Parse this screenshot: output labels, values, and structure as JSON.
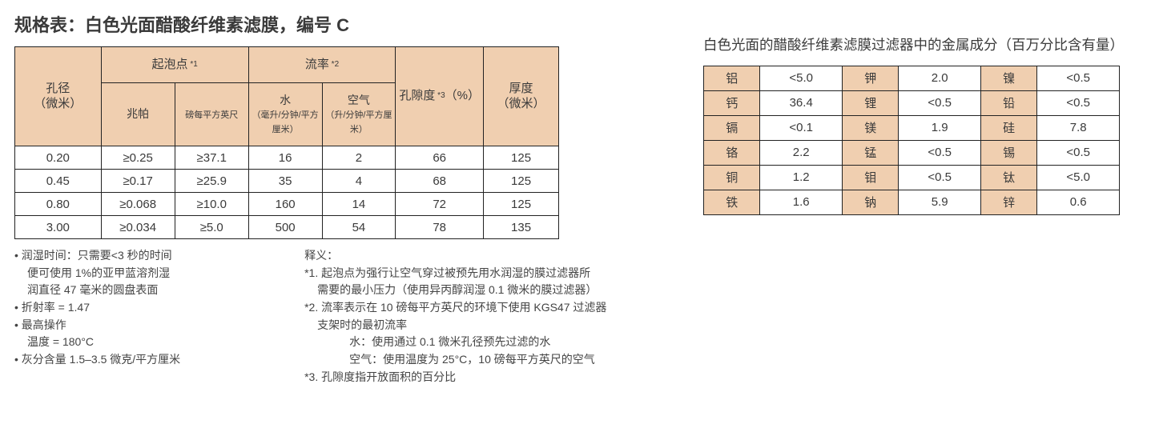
{
  "colors": {
    "header_fill": "#f0cfb0",
    "border": "#222222",
    "text": "#3a3a3a",
    "bg": "#ffffff"
  },
  "title": "规格表：白色光面醋酸纤维素滤膜，编号 C",
  "spec_table": {
    "headers": {
      "pore": "孔径",
      "pore_unit": "（微米）",
      "bubble": "起泡点",
      "bubble_note": " *1",
      "flow": "流率",
      "flow_note": " *2",
      "porosity": "孔隙度",
      "porosity_note": " *3",
      "porosity_unit": "（%）",
      "thickness": "厚度",
      "thickness_unit": "（微米）",
      "mpa": "兆帕",
      "psi": "磅每平方英尺",
      "water": "水",
      "water_unit": "（毫升/分钟/平方厘米）",
      "air": "空气",
      "air_unit": "（升/分钟/平方厘米）"
    },
    "rows": [
      {
        "pore": "0.20",
        "mpa": "≥0.25",
        "psi": "≥37.1",
        "water": "16",
        "air": "2",
        "porosity": "66",
        "thickness": "125"
      },
      {
        "pore": "0.45",
        "mpa": "≥0.17",
        "psi": "≥25.9",
        "water": "35",
        "air": "4",
        "porosity": "68",
        "thickness": "125"
      },
      {
        "pore": "0.80",
        "mpa": "≥0.068",
        "psi": "≥10.0",
        "water": "160",
        "air": "14",
        "porosity": "72",
        "thickness": "125"
      },
      {
        "pore": "3.00",
        "mpa": "≥0.034",
        "psi": "≥5.0",
        "water": "500",
        "air": "54",
        "porosity": "78",
        "thickness": "135"
      }
    ]
  },
  "footnotes_left": [
    "• 润湿时间：只需要<3 秒的时间",
    "便可使用 1%的亚甲蓝溶剂湿",
    "润直径 47 毫米的圆盘表面",
    "• 折射率 = 1.47",
    "• 最高操作",
    "温度 = 180°C",
    "• 灰分含量 1.5–3.5 微克/平方厘米"
  ],
  "footnotes_right_title": "释义：",
  "footnotes_right": [
    "*1. 起泡点为强行让空气穿过被预先用水润湿的膜过滤器所",
    "需要的最小压力（使用异丙醇润湿 0.1 微米的膜过滤器）",
    "*2. 流率表示在 10 磅每平方英尺的环境下使用 KGS47 过滤器",
    "支架时的最初流率",
    "水：使用通过 0.1 微米孔径预先过滤的水",
    "空气：使用温度为 25°C，10 磅每平方英尺的空气",
    "*3. 孔隙度指开放面积的百分比"
  ],
  "right_title": "白色光面的醋酸纤维素滤膜过滤器中的金属成分（百万分比含有量）",
  "metal_table": {
    "rows": [
      [
        {
          "n": "铝",
          "v": "<5.0"
        },
        {
          "n": "钾",
          "v": "2.0"
        },
        {
          "n": "镍",
          "v": "<0.5"
        }
      ],
      [
        {
          "n": "钙",
          "v": "36.4"
        },
        {
          "n": "锂",
          "v": "<0.5"
        },
        {
          "n": "铅",
          "v": "<0.5"
        }
      ],
      [
        {
          "n": "镉",
          "v": "<0.1"
        },
        {
          "n": "镁",
          "v": "1.9"
        },
        {
          "n": "硅",
          "v": "7.8"
        }
      ],
      [
        {
          "n": "铬",
          "v": "2.2"
        },
        {
          "n": "锰",
          "v": "<0.5"
        },
        {
          "n": "锡",
          "v": "<0.5"
        }
      ],
      [
        {
          "n": "铜",
          "v": "1.2"
        },
        {
          "n": "钼",
          "v": "<0.5"
        },
        {
          "n": "钛",
          "v": "<5.0"
        }
      ],
      [
        {
          "n": "铁",
          "v": "1.6"
        },
        {
          "n": "钠",
          "v": "5.9"
        },
        {
          "n": "锌",
          "v": "0.6"
        }
      ]
    ]
  }
}
